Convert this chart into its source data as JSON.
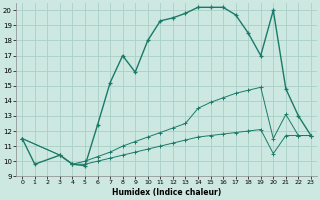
{
  "xlabel": "Humidex (Indice chaleur)",
  "bg_color": "#cce8e0",
  "grid_color": "#aacfc8",
  "line_color": "#1a7a6a",
  "xlim": [
    -0.5,
    23.5
  ],
  "ylim": [
    9,
    20.5
  ],
  "yticks": [
    9,
    10,
    11,
    12,
    13,
    14,
    15,
    16,
    17,
    18,
    19,
    20
  ],
  "xticks": [
    0,
    1,
    2,
    3,
    4,
    5,
    6,
    7,
    8,
    9,
    10,
    11,
    12,
    13,
    14,
    15,
    16,
    17,
    18,
    19,
    20,
    21,
    22,
    23
  ],
  "line1_x": [
    0,
    1,
    3,
    4,
    5,
    6,
    7,
    8,
    9,
    10,
    11,
    12,
    13,
    14,
    15,
    16,
    17,
    18,
    19,
    20,
    21,
    22,
    23
  ],
  "line1_y": [
    11.5,
    9.8,
    10.4,
    9.8,
    9.7,
    12.4,
    15.2,
    17.0,
    15.9,
    18.0,
    19.3,
    19.5,
    19.8,
    20.2,
    20.2,
    20.2,
    19.7,
    18.5,
    17.0,
    20.0,
    14.8,
    13.0,
    11.7
  ],
  "line2_x": [
    0,
    3,
    4,
    5,
    6,
    7,
    8,
    9,
    10,
    11,
    12,
    13,
    14,
    15,
    16,
    17,
    18,
    19,
    20,
    21,
    22,
    23
  ],
  "line2_y": [
    11.5,
    10.4,
    9.8,
    10.0,
    10.3,
    10.6,
    11.0,
    11.3,
    11.6,
    11.9,
    12.2,
    12.5,
    13.5,
    13.9,
    14.2,
    14.5,
    14.7,
    14.9,
    11.5,
    13.1,
    11.7,
    11.7
  ],
  "line3_x": [
    0,
    3,
    4,
    5,
    6,
    7,
    8,
    9,
    10,
    11,
    12,
    13,
    14,
    15,
    16,
    17,
    18,
    19,
    20,
    21,
    22,
    23
  ],
  "line3_y": [
    11.5,
    10.4,
    9.8,
    9.8,
    10.0,
    10.2,
    10.4,
    10.6,
    10.8,
    11.0,
    11.2,
    11.4,
    11.6,
    11.7,
    11.8,
    11.9,
    12.0,
    12.1,
    10.5,
    11.7,
    11.7,
    11.7
  ]
}
